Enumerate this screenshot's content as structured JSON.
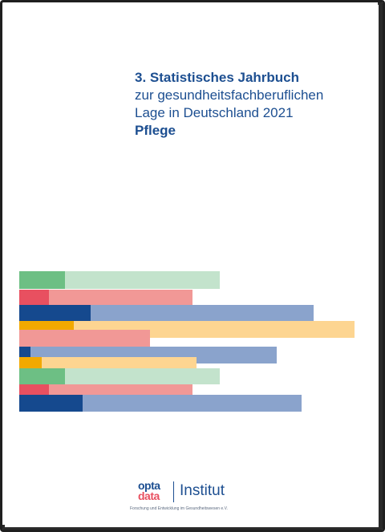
{
  "title": {
    "line1": "3. Statistisches Jahrbuch",
    "line2": "zur gesundheitsfachberuflichen",
    "line3": "Lage in Deutschland 2021",
    "line4": "Pflege"
  },
  "logo": {
    "opta": "opta",
    "data": "data",
    "institut": "Institut",
    "tagline": "Forschung und Entwicklung im Gesundheitswesen e.V."
  },
  "colors": {
    "title": "#1d4f91",
    "green_dark": "#6dbf84",
    "green_light": "#c3e3cc",
    "red_dark": "#e85060",
    "red_light": "#f19896",
    "blue_dark": "#15498e",
    "blue_light": "#8aa3cc",
    "orange_dark": "#f2a900",
    "orange_light": "#fdd591"
  }
}
